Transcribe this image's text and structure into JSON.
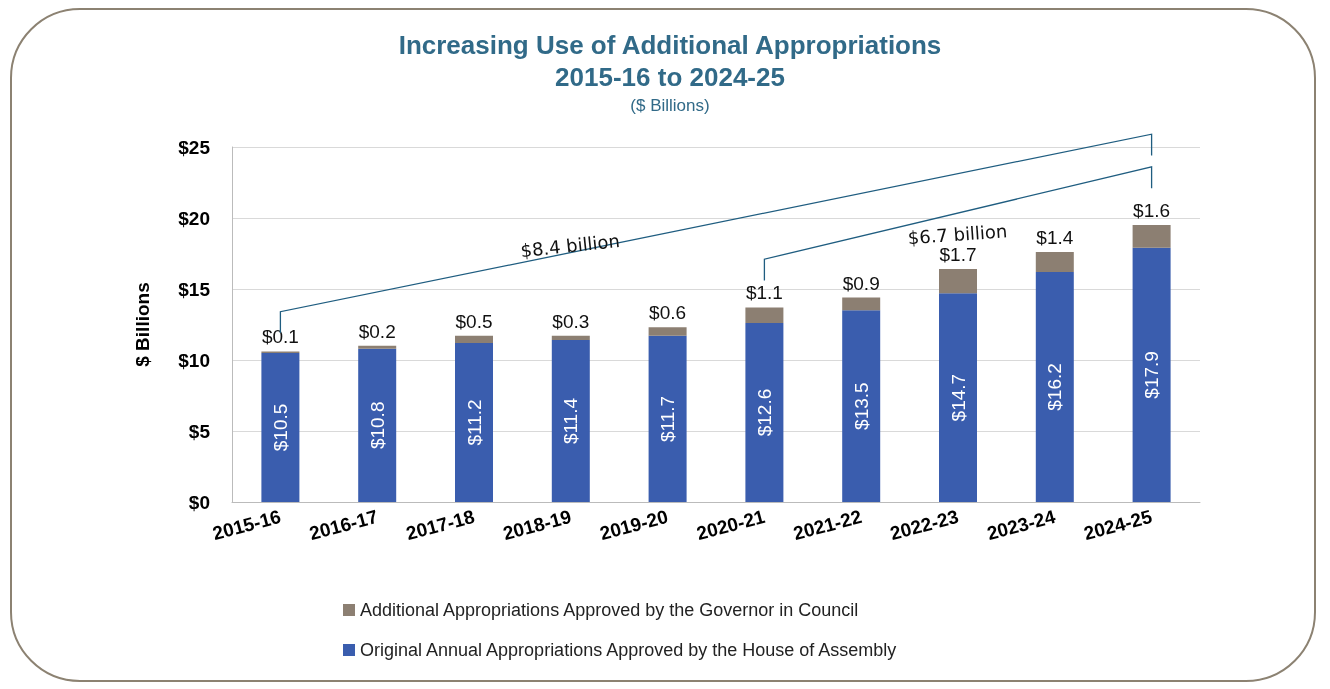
{
  "chart_data": {
    "type": "bar",
    "title": "Increasing Use of Additional Appropriations\n2015-16 to 2024-25",
    "subtitle": "($ Billions)",
    "ylabel": "$ Billions",
    "categories": [
      "2015-16",
      "2016-17",
      "2017-18",
      "2018-19",
      "2019-20",
      "2020-21",
      "2021-22",
      "2022-23",
      "2023-24",
      "2024-25"
    ],
    "stacked": true,
    "series": [
      {
        "name": "Original Annual Appropriations Approved by the House of Assembly",
        "color": "#3a5dae",
        "values": [
          10.5,
          10.8,
          11.2,
          11.4,
          11.7,
          12.6,
          13.5,
          14.7,
          16.2,
          17.9
        ],
        "value_labels": [
          "$10.5",
          "$10.8",
          "$11.2",
          "$11.4",
          "$11.7",
          "$12.6",
          "$13.5",
          "$14.7",
          "$16.2",
          "$17.9"
        ]
      },
      {
        "name": "Additional Appropriations Approved by the Governor in Council",
        "color": "#8c7f72",
        "values": [
          0.1,
          0.2,
          0.5,
          0.3,
          0.6,
          1.1,
          0.9,
          1.7,
          1.4,
          1.6
        ],
        "value_labels": [
          "$0.1",
          "$0.2",
          "$0.5",
          "$0.3",
          "$0.6",
          "$1.1",
          "$0.9",
          "$1.7",
          "$1.4",
          "$1.6"
        ]
      }
    ],
    "ylim": [
      0,
      25
    ],
    "yticks": [
      {
        "value": 0,
        "label": "$0"
      },
      {
        "value": 5,
        "label": "$5"
      },
      {
        "value": 10,
        "label": "$10"
      },
      {
        "value": 15,
        "label": "$15"
      },
      {
        "value": 20,
        "label": "$20"
      },
      {
        "value": 25,
        "label": "$25"
      }
    ],
    "grid": "y",
    "legend": "bottom",
    "annotations": [
      "$8.4 billion",
      "$6.7 billion"
    ]
  }
}
